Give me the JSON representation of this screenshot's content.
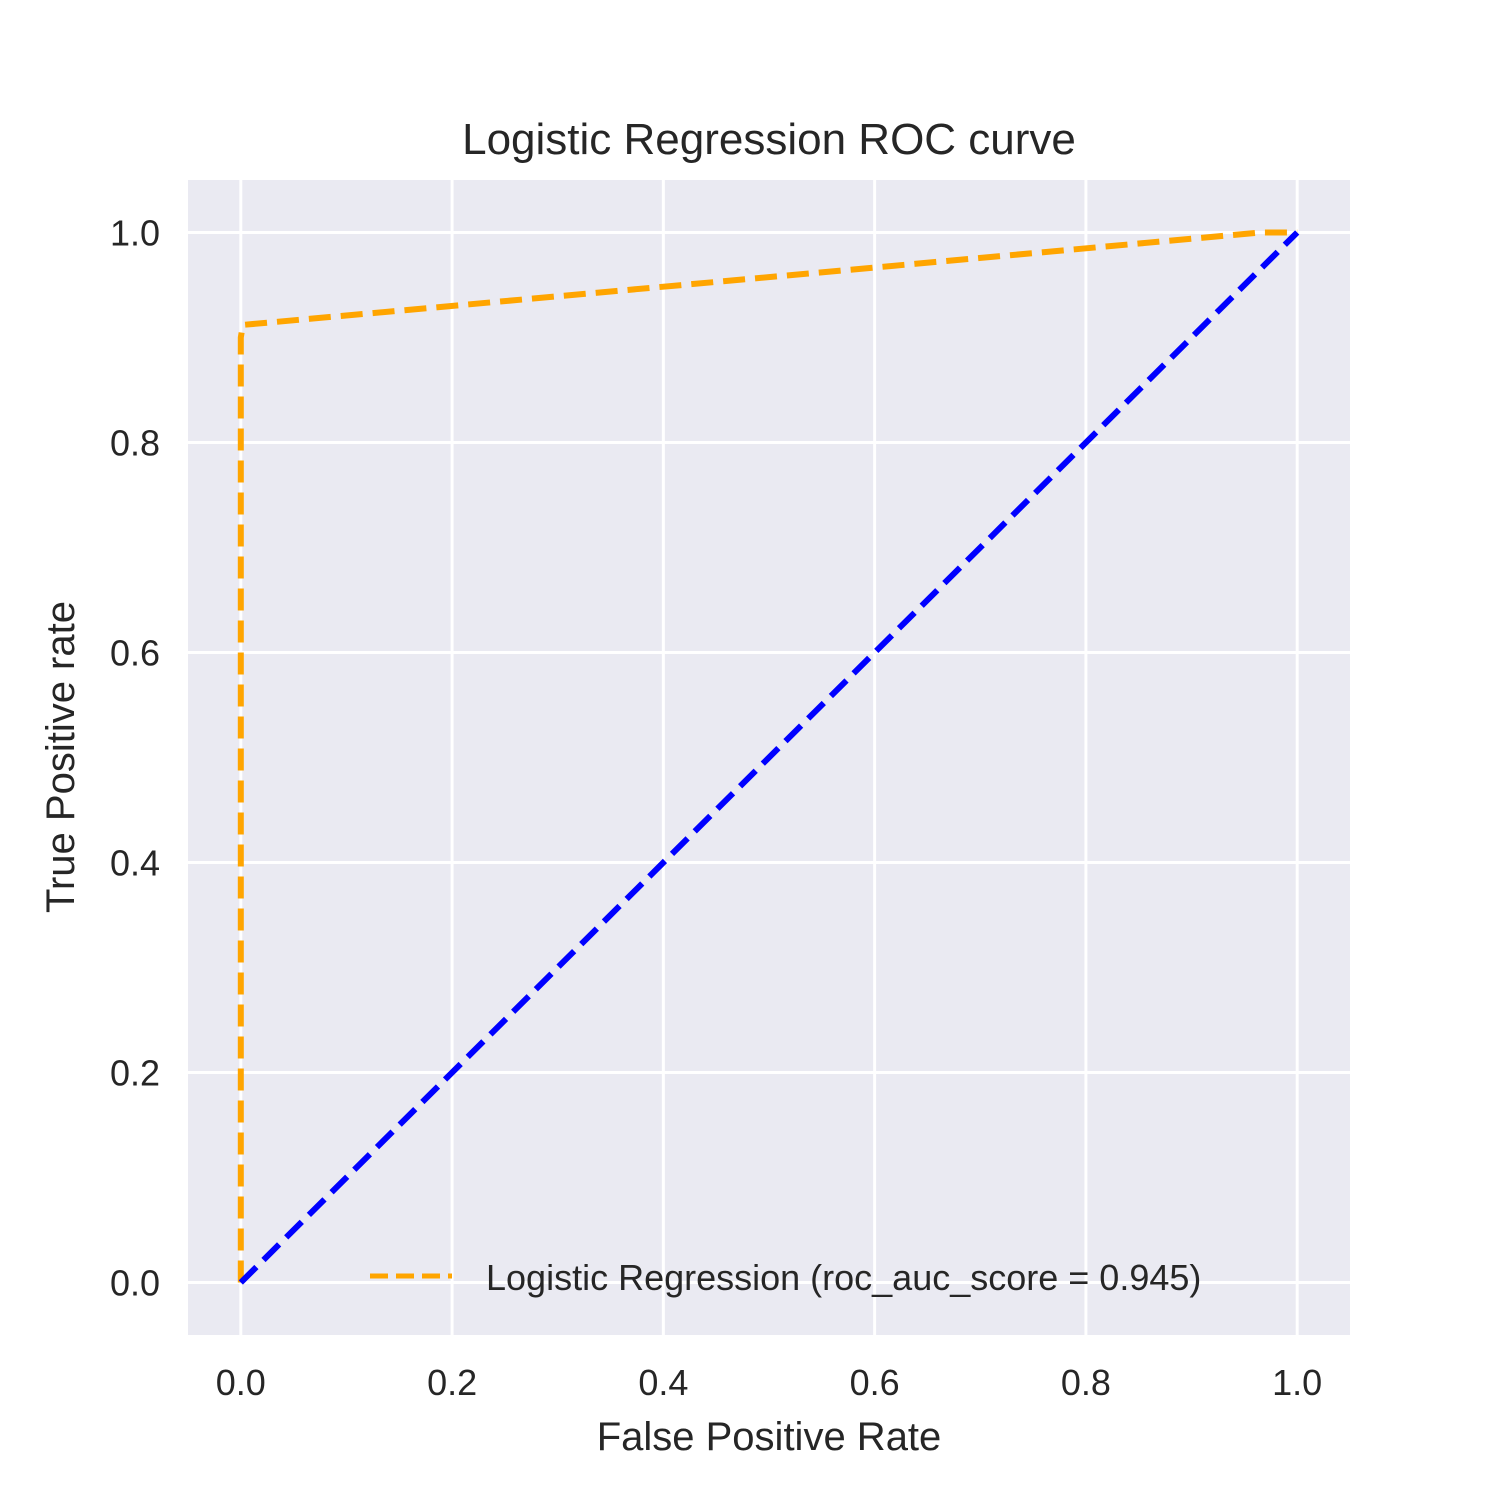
{
  "chart_data": {
    "type": "line",
    "title": "Logistic Regression ROC curve",
    "xlabel": "False Positive Rate",
    "ylabel": "True Positive rate",
    "xlim": [
      -0.05,
      1.05
    ],
    "ylim": [
      -0.05,
      1.05
    ],
    "xticks": [
      0.0,
      0.2,
      0.4,
      0.6,
      0.8,
      1.0
    ],
    "yticks": [
      0.0,
      0.2,
      0.4,
      0.6,
      0.8,
      1.0
    ],
    "xtick_labels": [
      "0.0",
      "0.2",
      "0.4",
      "0.6",
      "0.8",
      "1.0"
    ],
    "ytick_labels": [
      "0.0",
      "0.2",
      "0.4",
      "0.6",
      "0.8",
      "1.0"
    ],
    "grid": true,
    "background": "#eaeaf2",
    "legend_position": "lower right",
    "series": [
      {
        "name": "Logistic Regression (roc_auc_score = 0.945)",
        "color": "#ffa500",
        "style": "dashed",
        "x": [
          0.0,
          0.0,
          0.0,
          0.002,
          0.965,
          1.0
        ],
        "y": [
          0.0,
          0.5,
          0.9,
          0.912,
          1.0,
          1.0
        ]
      },
      {
        "name": "",
        "color": "#0000ff",
        "style": "dashed",
        "x": [
          0.0,
          1.0
        ],
        "y": [
          0.0,
          1.0
        ]
      }
    ]
  }
}
